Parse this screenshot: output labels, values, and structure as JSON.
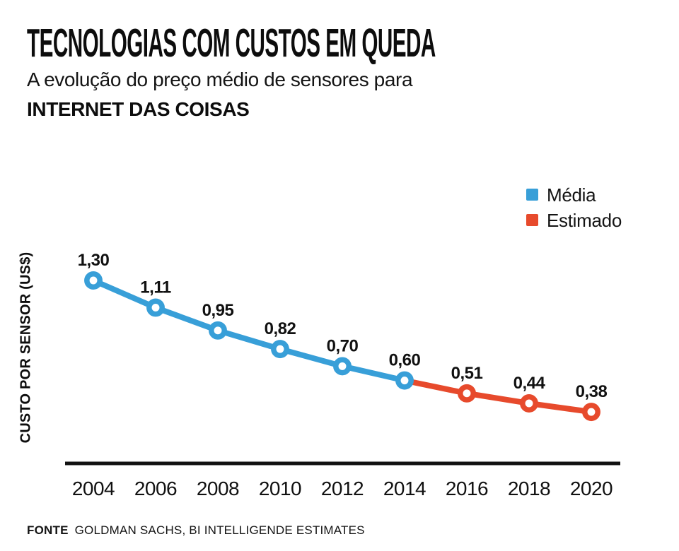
{
  "header": {
    "title": "TECNOLOGIAS COM CUSTOS EM QUEDA",
    "subtitle": "A evolução do preço médio de sensores para",
    "subtitle_bold": "INTERNET DAS COISAS"
  },
  "legend": [
    {
      "label": "Média",
      "color": "#389FD8"
    },
    {
      "label": "Estimado",
      "color": "#E74A2C"
    }
  ],
  "chart_data": {
    "type": "line",
    "title": "TECNOLOGIAS COM CUSTOS EM QUEDA",
    "subtitle": "A evolução do preço médio de sensores para INTERNET DAS COISAS",
    "xlabel": "",
    "ylabel": "CUSTO POR SENSOR (US$)",
    "x_ticks": [
      "2004",
      "2006",
      "2008",
      "2010",
      "2012",
      "2014",
      "2016",
      "2018",
      "2020"
    ],
    "ylim": [
      0,
      1.6
    ],
    "grid": false,
    "legend_position": "top-right",
    "series": [
      {
        "name": "Média",
        "color": "#389FD8",
        "x": [
          2004,
          2006,
          2008,
          2010,
          2012,
          2014
        ],
        "values": [
          1.3,
          1.11,
          0.95,
          0.82,
          0.7,
          0.6
        ]
      },
      {
        "name": "Estimado",
        "color": "#E74A2C",
        "x": [
          2014,
          2016,
          2018,
          2020
        ],
        "values": [
          0.6,
          0.51,
          0.44,
          0.38
        ]
      }
    ],
    "points": [
      {
        "x": 2004,
        "value": 1.3,
        "label": "1,30",
        "series": "Média"
      },
      {
        "x": 2006,
        "value": 1.11,
        "label": "1,11",
        "series": "Média"
      },
      {
        "x": 2008,
        "value": 0.95,
        "label": "0,95",
        "series": "Média"
      },
      {
        "x": 2010,
        "value": 0.82,
        "label": "0,82",
        "series": "Média"
      },
      {
        "x": 2012,
        "value": 0.7,
        "label": "0,70",
        "series": "Média"
      },
      {
        "x": 2014,
        "value": 0.6,
        "label": "0,60",
        "series": "Média"
      },
      {
        "x": 2016,
        "value": 0.51,
        "label": "0,51",
        "series": "Estimado"
      },
      {
        "x": 2018,
        "value": 0.44,
        "label": "0,44",
        "series": "Estimado"
      },
      {
        "x": 2020,
        "value": 0.38,
        "label": "0,38",
        "series": "Estimado"
      }
    ]
  },
  "footer": {
    "source_label": "FONTE",
    "source_text": "GOLDMAN SACHS, BI INTELLIGENDE ESTIMATES"
  },
  "colors": {
    "text": "#111111",
    "axis": "#111111"
  }
}
